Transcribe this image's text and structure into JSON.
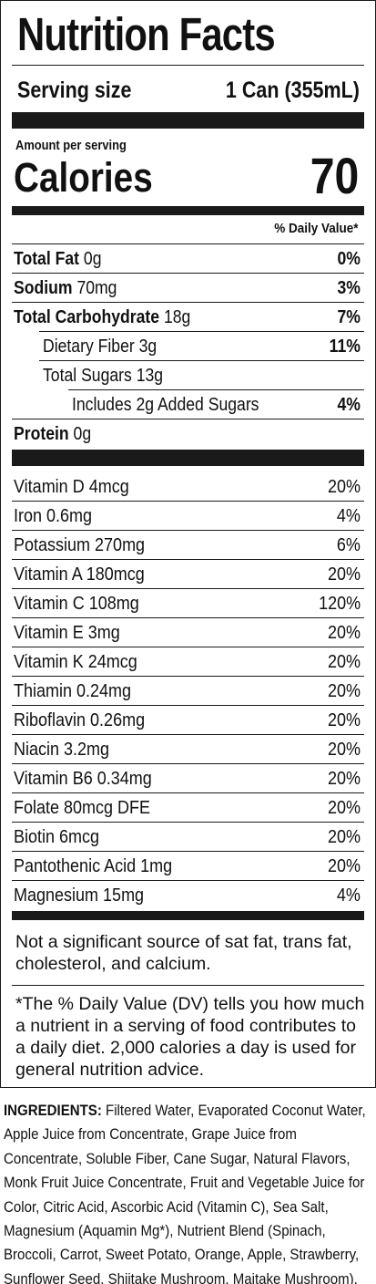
{
  "label": {
    "title": "Nutrition Facts",
    "serving_size_label": "Serving size",
    "serving_size_value": "1 Can (355mL)",
    "amount_per_serving": "Amount per serving",
    "calories_label": "Calories",
    "calories_value": "70",
    "daily_value_header": "% Daily Value*",
    "nutrients": [
      {
        "name": "Total Fat",
        "amount": "0g",
        "dv": "0%"
      },
      {
        "name": "Sodium",
        "amount": "70mg",
        "dv": "3%"
      },
      {
        "name": "Total Carbohydrate",
        "amount": "18g",
        "dv": "7%"
      },
      {
        "name": "Dietary Fiber 3g",
        "dv": "11%"
      },
      {
        "name": "Total Sugars 13g",
        "dv": ""
      },
      {
        "name": "Includes 2g Added Sugars",
        "dv": "4%"
      },
      {
        "name": "Protein",
        "amount": "0g",
        "dv": ""
      }
    ],
    "vitamins": [
      {
        "name": "Vitamin D 4mcg",
        "dv": "20%"
      },
      {
        "name": "Iron 0.6mg",
        "dv": "4%"
      },
      {
        "name": "Potassium 270mg",
        "dv": "6%"
      },
      {
        "name": "Vitamin A 180mcg",
        "dv": "20%"
      },
      {
        "name": "Vitamin C 108mg",
        "dv": "120%"
      },
      {
        "name": "Vitamin E 3mg",
        "dv": "20%"
      },
      {
        "name": "Vitamin K 24mcg",
        "dv": "20%"
      },
      {
        "name": "Thiamin 0.24mg",
        "dv": "20%"
      },
      {
        "name": "Riboflavin 0.26mg",
        "dv": "20%"
      },
      {
        "name": "Niacin 3.2mg",
        "dv": "20%"
      },
      {
        "name": "Vitamin B6 0.34mg",
        "dv": "20%"
      },
      {
        "name": "Folate 80mcg DFE",
        "dv": "20%"
      },
      {
        "name": "Biotin 6mcg",
        "dv": "20%"
      },
      {
        "name": "Pantothenic Acid 1mg",
        "dv": "20%"
      },
      {
        "name": "Magnesium 15mg",
        "dv": "4%"
      }
    ],
    "not_significant_note": "Not a significant source of sat fat, trans fat, cholesterol, and calcium.",
    "footnote": "*The % Daily Value (DV) tells you how much a nutrient in a serving of food contributes to a daily diet. 2,000 calories a day is used for general nutrition advice."
  },
  "ingredients": {
    "heading": "INGREDIENTS:",
    "text": "Filtered Water, Evaporated Coconut Water, Apple Juice from Concentrate, Grape Juice from Concentrate, Soluble Fiber, Cane Sugar, Natural Flavors, Monk Fruit Juice Concentrate, Fruit and Vegetable Juice for Color, Citric Acid, Ascorbic Acid (Vitamin C), Sea Salt, Magnesium (Aquamin Mg*), Nutrient Blend (Spinach, Broccoli, Carrot, Sweet Potato, Orange, Apple, Strawberry, Sunflower Seed, Shiitake Mushroom, Maitake Mushroom)."
  }
}
